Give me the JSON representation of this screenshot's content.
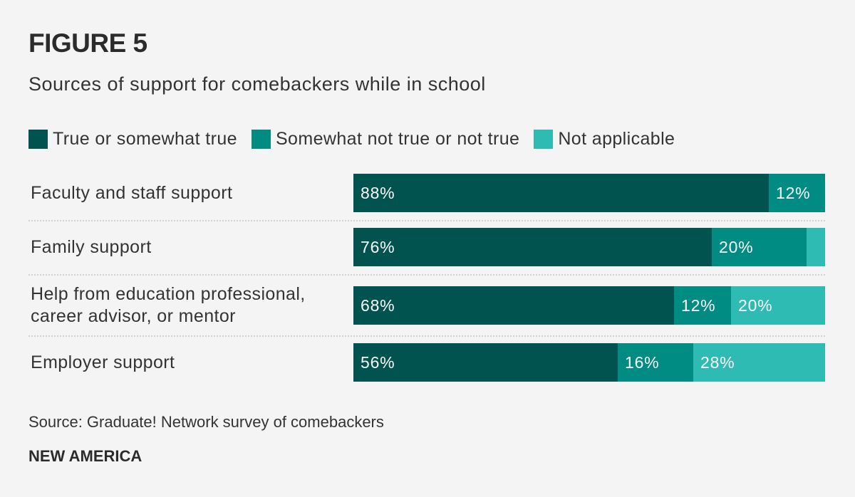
{
  "figure_label": "FIGURE 5",
  "subtitle": "Sources of support for comebackers while in school",
  "source": "Source: Graduate! Network survey of comebackers",
  "brand": "NEW AMERICA",
  "chart_data": {
    "type": "bar",
    "orientation": "horizontal",
    "stacked": true,
    "categories": [
      "Faculty and staff support",
      "Family support",
      "Help from education professional, career advisor, or mentor",
      "Employer support"
    ],
    "category_lines": [
      [
        "Faculty and staff support"
      ],
      [
        "Family support"
      ],
      [
        "Help from education professional,",
        "career advisor, or mentor"
      ],
      [
        "Employer support"
      ]
    ],
    "series": [
      {
        "name": "True or somewhat true",
        "color": "#00534f",
        "values": [
          88,
          76,
          68,
          56
        ],
        "labels": [
          "88%",
          "76%",
          "68%",
          "56%"
        ]
      },
      {
        "name": "Somewhat not true or not true",
        "color": "#008c82",
        "values": [
          12,
          20,
          12,
          16
        ],
        "labels": [
          "12%",
          "20%",
          "12%",
          "16%"
        ]
      },
      {
        "name": "Not applicable",
        "color": "#2dbbb3",
        "values": [
          0,
          4,
          20,
          28
        ],
        "labels": [
          "",
          "",
          "20%",
          "28%"
        ]
      }
    ],
    "xlim": [
      0,
      100
    ],
    "legend_position": "top-left"
  }
}
